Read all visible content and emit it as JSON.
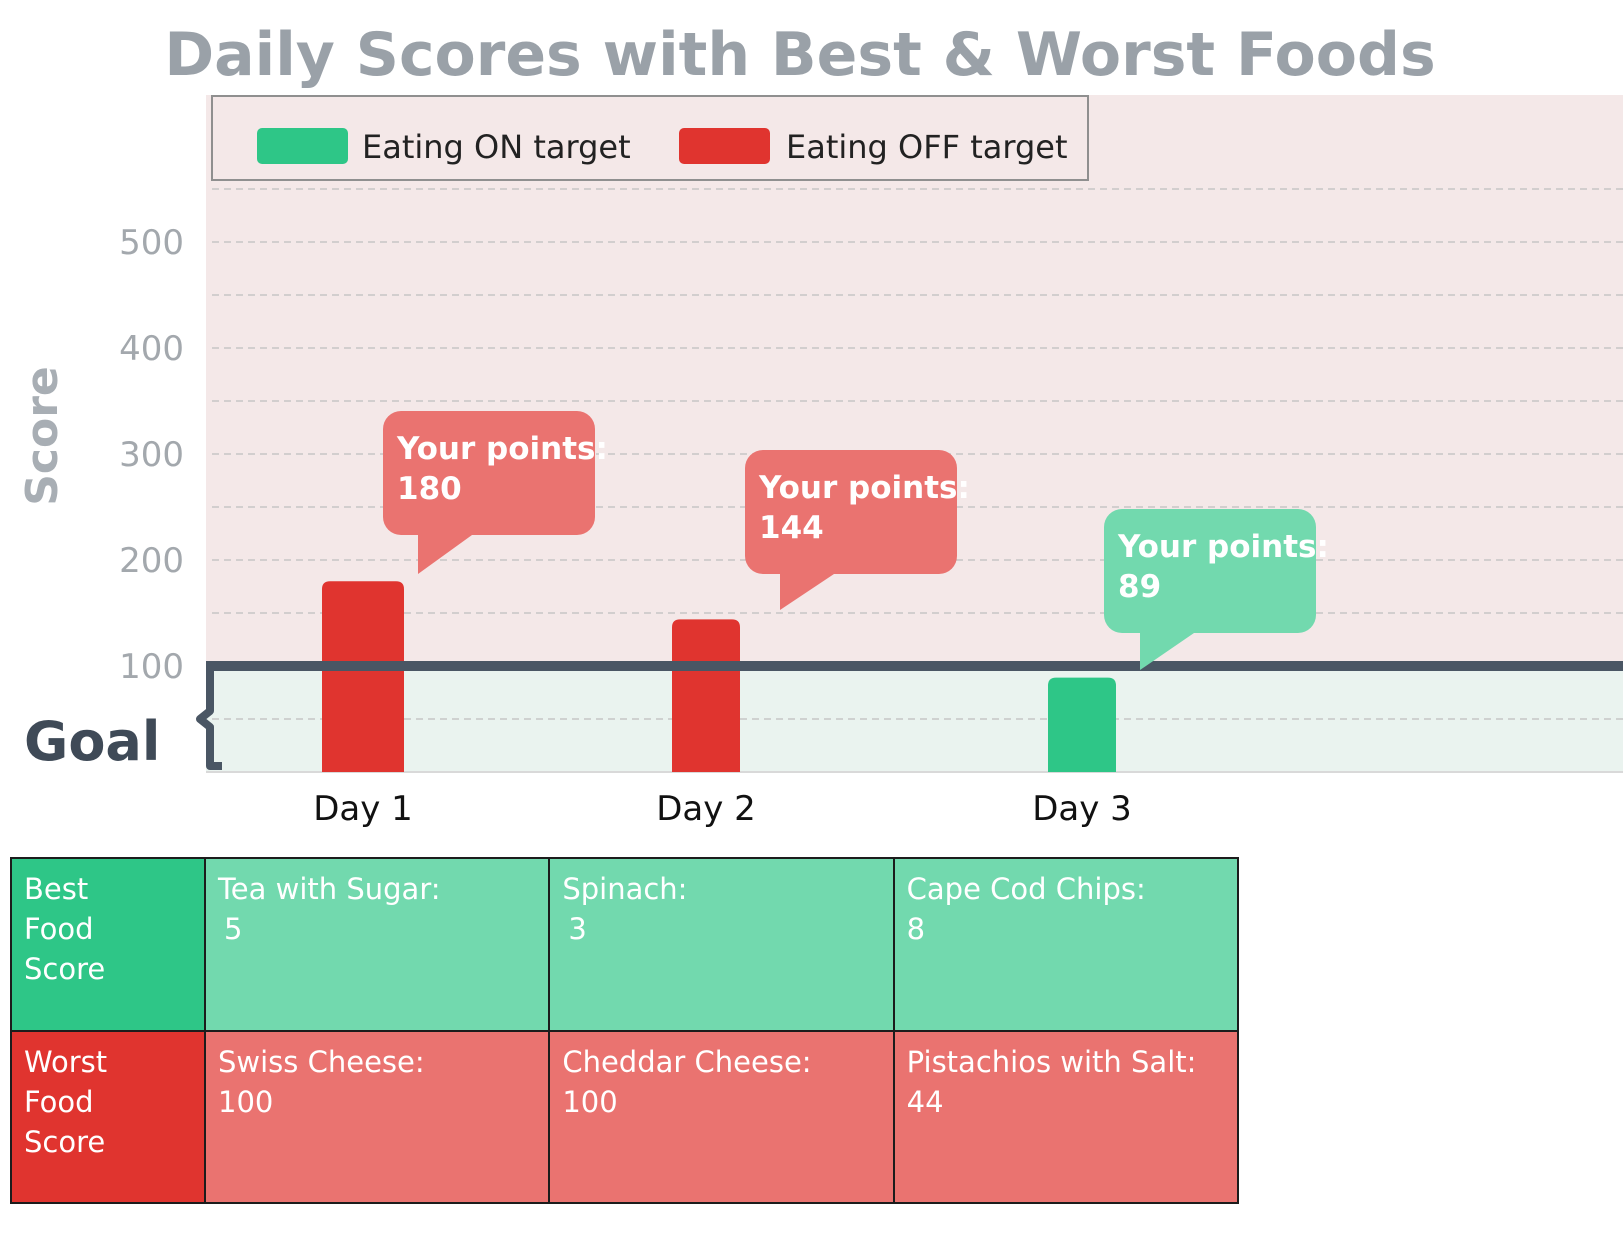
{
  "chart_data": {
    "type": "bar",
    "title": "Daily Scores with Best & Worst Foods",
    "ylabel": "Score",
    "xlabel": "",
    "ylim": [
      0,
      500
    ],
    "yticks": [
      100,
      200,
      300,
      400,
      500
    ],
    "grid": true,
    "legend_position": "top-left",
    "goal": {
      "label": "Goal",
      "value": 100
    },
    "categories": [
      "Day 1",
      "Day 2",
      "Day 3"
    ],
    "values": [
      180,
      144,
      89
    ],
    "status": [
      "off",
      "off",
      "on"
    ],
    "legend": [
      {
        "key": "on",
        "label": "Eating ON target",
        "color": "#2ec687"
      },
      {
        "key": "off",
        "label": "Eating OFF target",
        "color": "#e0342f"
      }
    ],
    "callout_label": "Your points:"
  },
  "colors": {
    "on": "#2ec687",
    "off": "#e0342f",
    "on_light": "#72d9ae",
    "off_light": "#ea7370",
    "title": "#9aa1a8",
    "goal_line": "#4a5664"
  },
  "table": {
    "rows": [
      {
        "header": "Best\nFood\nScore",
        "kind": "best",
        "cells": [
          {
            "name": "Tea with Sugar:",
            "value": "5"
          },
          {
            "name": "Spinach:",
            "value": "3"
          },
          {
            "name": "Cape Cod Chips:",
            "value": "8"
          }
        ]
      },
      {
        "header": "Worst\nFood\nScore",
        "kind": "worst",
        "cells": [
          {
            "name": "Swiss Cheese:",
            "value": "100"
          },
          {
            "name": "Cheddar Cheese:",
            "value": "100"
          },
          {
            "name": "Pistachios with Salt:",
            "value": "44"
          }
        ]
      }
    ]
  }
}
